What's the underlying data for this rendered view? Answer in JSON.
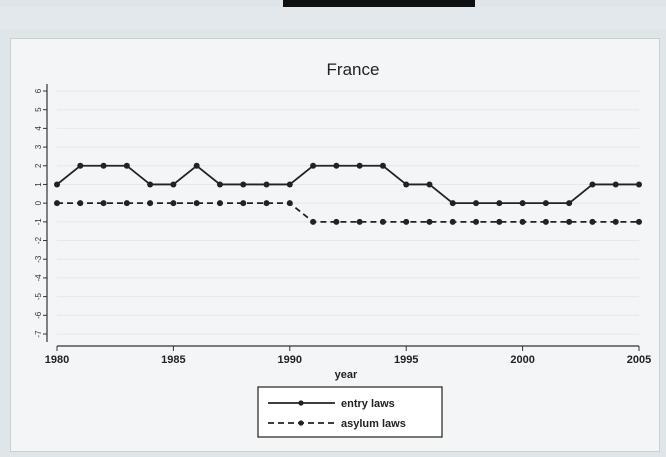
{
  "colors": {
    "background": "#dfe6ea",
    "panel": "#f3f5f6",
    "ink": "#222222"
  },
  "chart_data": {
    "type": "line",
    "title": "France",
    "xlabel": "year",
    "ylabel": "",
    "x": [
      1980,
      1981,
      1982,
      1983,
      1984,
      1985,
      1986,
      1987,
      1988,
      1989,
      1990,
      1991,
      1992,
      1993,
      1994,
      1995,
      1996,
      1997,
      1998,
      1999,
      2000,
      2001,
      2002,
      2003,
      2004,
      2005
    ],
    "xticks": [
      1980,
      1985,
      1990,
      1995,
      2000,
      2005
    ],
    "ytick_labels": [
      "6",
      "5",
      "4",
      "3",
      "2",
      "1",
      "0",
      "-1",
      "-2",
      "-3",
      "-4",
      "-5",
      "-6",
      "-7"
    ],
    "ylim": [
      -7,
      6
    ],
    "xlim": [
      1980,
      2005
    ],
    "grid": true,
    "legend_position": "bottom",
    "series": [
      {
        "name": "entry laws",
        "style": "solid",
        "values": [
          1,
          2,
          2,
          2,
          1,
          1,
          2,
          1,
          1,
          1,
          1,
          2,
          2,
          2,
          2,
          1,
          1,
          0,
          0,
          0,
          0,
          0,
          0,
          1,
          1,
          1
        ]
      },
      {
        "name": "asylum laws",
        "style": "dashed",
        "values": [
          0,
          0,
          0,
          0,
          0,
          0,
          0,
          0,
          0,
          0,
          0,
          -1,
          -1,
          -1,
          -1,
          -1,
          -1,
          -1,
          -1,
          -1,
          -1,
          -1,
          -1,
          -1,
          -1,
          -1
        ]
      }
    ]
  }
}
